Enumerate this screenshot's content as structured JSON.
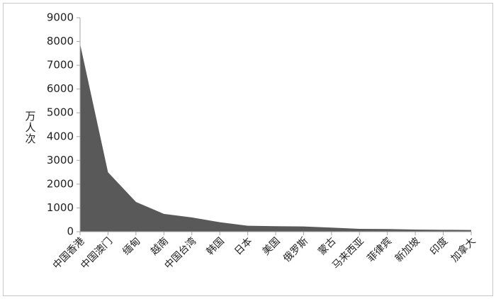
{
  "chart_data": {
    "type": "area",
    "y_label": "万人次",
    "categories": [
      "中国香港",
      "中国澳门",
      "缅甸",
      "越南",
      "中国台湾",
      "韩国",
      "日本",
      "美国",
      "俄罗斯",
      "蒙古",
      "马来西亚",
      "菲律宾",
      "新加坡",
      "印度",
      "加拿大"
    ],
    "values": [
      7900,
      2500,
      1250,
      750,
      600,
      400,
      250,
      230,
      220,
      170,
      120,
      110,
      90,
      80,
      70
    ],
    "color": "#595959",
    "ylim": [
      0,
      9000
    ],
    "yticks": [
      0,
      1000,
      2000,
      3000,
      4000,
      5000,
      6000,
      7000,
      8000,
      9000
    ],
    "grid": false
  }
}
